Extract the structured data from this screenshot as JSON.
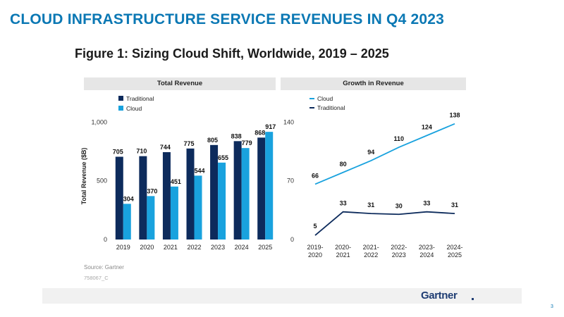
{
  "slide": {
    "title": "CLOUD INFRASTRUCTURE SERVICE REVENUES IN Q4 2023",
    "figure_title": "Figure 1: Sizing Cloud Shift, Worldwide, 2019 – 2025",
    "source": "Source: Gartner",
    "doc_id": "758067_C",
    "logo": "Gartner",
    "page_number": "3"
  },
  "colors": {
    "traditional": "#0d2b5c",
    "cloud": "#19a2de",
    "title_blue": "#0b78b4"
  },
  "chart_data": [
    {
      "type": "bar",
      "title": "Total Revenue",
      "ylabel": "Total Revenue ($B)",
      "categories": [
        "2019",
        "2020",
        "2021",
        "2022",
        "2023",
        "2024",
        "2025"
      ],
      "series": [
        {
          "name": "Traditional",
          "values": [
            705,
            710,
            744,
            775,
            805,
            838,
            868
          ]
        },
        {
          "name": "Cloud",
          "values": [
            304,
            370,
            451,
            544,
            655,
            779,
            917
          ]
        }
      ],
      "yticks": [
        0,
        500,
        1000
      ],
      "ytick_labels": [
        "0",
        "500",
        "1,000"
      ],
      "ylim": [
        0,
        1200
      ],
      "legend": "top-left",
      "grid": false
    },
    {
      "type": "line",
      "title": "Growth in Revenue",
      "categories": [
        "2019-\n2020",
        "2020-\n2021",
        "2021-\n2022",
        "2022-\n2023",
        "2023-\n2024",
        "2024-\n2025"
      ],
      "series": [
        {
          "name": "Cloud",
          "values": [
            66,
            80,
            94,
            110,
            124,
            138
          ]
        },
        {
          "name": "Traditional",
          "values": [
            5,
            33,
            31,
            30,
            33,
            31
          ]
        }
      ],
      "yticks": [
        0,
        70,
        140
      ],
      "ylim": [
        0,
        168
      ],
      "legend": "top-left",
      "grid": false
    }
  ]
}
